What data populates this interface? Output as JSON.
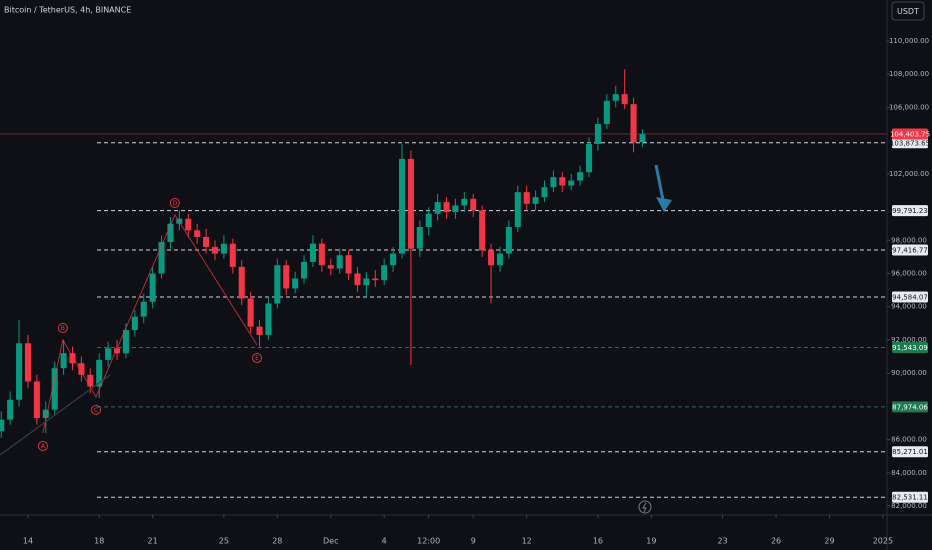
{
  "header": {
    "title": "Bitcoin / TetherUS, 4h, BINANCE",
    "currency_button": "USDT"
  },
  "chart_data": {
    "type": "candlestick",
    "up_color": "#089981",
    "down_color": "#f23645",
    "xlim": [
      -1.57,
      48.23
    ],
    "ylim": [
      81460,
      112470
    ],
    "grid": false,
    "xticks": [
      {
        "value": 0,
        "label": "14"
      },
      {
        "value": 4,
        "label": "18"
      },
      {
        "value": 7,
        "label": "21"
      },
      {
        "value": 11,
        "label": "25"
      },
      {
        "value": 14,
        "label": "28"
      },
      {
        "value": 17,
        "label": "Dec"
      },
      {
        "value": 20,
        "label": "4"
      },
      {
        "value": 22.5,
        "label": "12:00"
      },
      {
        "value": 25,
        "label": "9"
      },
      {
        "value": 28,
        "label": "12"
      },
      {
        "value": 32,
        "label": "16"
      },
      {
        "value": 35,
        "label": "19"
      },
      {
        "value": 39,
        "label": "23"
      },
      {
        "value": 42,
        "label": "26"
      },
      {
        "value": 45,
        "label": "29"
      },
      {
        "value": 48,
        "label": "2025"
      }
    ],
    "yticks": [
      {
        "value": 110000,
        "label": "110,000.00"
      },
      {
        "value": 108000,
        "label": "108,000.00"
      },
      {
        "value": 106000,
        "label": "106,000.00"
      },
      {
        "value": 102000,
        "label": "102,000.00"
      },
      {
        "value": 98000,
        "label": "98,000.00"
      },
      {
        "value": 96000,
        "label": "96,000.00"
      },
      {
        "value": 94000,
        "label": "94,000.00"
      },
      {
        "value": 92000,
        "label": "92,000.00"
      },
      {
        "value": 90000,
        "label": "90,000.00"
      },
      {
        "value": 86000,
        "label": "86,000.00"
      },
      {
        "value": 84000,
        "label": "84,000.00"
      },
      {
        "value": 82000,
        "label": "82,000.00"
      }
    ],
    "x": [
      -1.5,
      -1,
      -0.5,
      0,
      0.5,
      1,
      1.5,
      2,
      2.5,
      3,
      3.5,
      4,
      4.5,
      5,
      5.5,
      6,
      6.5,
      7,
      7.5,
      8,
      8.5,
      9,
      9.5,
      10,
      10.5,
      11,
      11.5,
      12,
      12.5,
      13,
      13.5,
      14,
      14.5,
      15,
      15.5,
      16,
      16.5,
      17,
      17.5,
      18,
      18.5,
      19,
      19.5,
      20,
      20.5,
      21,
      21.5,
      22,
      22.5,
      23,
      23.5,
      24,
      24.5,
      25,
      25.5,
      26,
      26.5,
      27,
      27.5,
      28,
      28.5,
      29,
      29.5,
      30,
      30.5,
      31,
      31.5,
      32,
      32.5,
      33,
      33.5,
      34,
      34.5
    ],
    "ohlc": [
      [
        86500,
        87700,
        86100,
        87200
      ],
      [
        87200,
        88900,
        86900,
        88400
      ],
      [
        88400,
        93200,
        88000,
        91800
      ],
      [
        91800,
        92300,
        89100,
        89500
      ],
      [
        89500,
        89900,
        86900,
        87300
      ],
      [
        87300,
        88300,
        86400,
        87800
      ],
      [
        87800,
        90700,
        87500,
        90300
      ],
      [
        90300,
        92000,
        89900,
        91200
      ],
      [
        91200,
        91600,
        90200,
        90600
      ],
      [
        90600,
        91000,
        89500,
        89900
      ],
      [
        89900,
        90300,
        88800,
        89200
      ],
      [
        89200,
        91200,
        88500,
        90800
      ],
      [
        90800,
        91900,
        90400,
        91500
      ],
      [
        91500,
        92000,
        90800,
        91200
      ],
      [
        91200,
        93000,
        90900,
        92600
      ],
      [
        92600,
        93800,
        92200,
        93400
      ],
      [
        93400,
        94800,
        93000,
        94300
      ],
      [
        94300,
        96400,
        93900,
        96000
      ],
      [
        96000,
        98300,
        95700,
        97900
      ],
      [
        97900,
        99400,
        97500,
        99000
      ],
      [
        99000,
        99800,
        98600,
        99300
      ],
      [
        99300,
        99600,
        98200,
        98600
      ],
      [
        98600,
        99000,
        97800,
        98200
      ],
      [
        98200,
        98700,
        97200,
        97600
      ],
      [
        97600,
        98000,
        96800,
        97200
      ],
      [
        97200,
        98300,
        96900,
        97800
      ],
      [
        97800,
        98100,
        96000,
        96400
      ],
      [
        96400,
        96800,
        94100,
        94500
      ],
      [
        94500,
        94900,
        92400,
        92800
      ],
      [
        92800,
        93200,
        91600,
        92300
      ],
      [
        92300,
        94600,
        92000,
        94200
      ],
      [
        94200,
        96900,
        93900,
        96500
      ],
      [
        96500,
        96800,
        94700,
        95100
      ],
      [
        95100,
        96100,
        94800,
        95700
      ],
      [
        95700,
        97100,
        95400,
        96700
      ],
      [
        96700,
        98300,
        96400,
        97800
      ],
      [
        97800,
        98100,
        96100,
        96500
      ],
      [
        96500,
        96900,
        95900,
        96300
      ],
      [
        96300,
        97500,
        96000,
        97100
      ],
      [
        97100,
        97400,
        95600,
        96000
      ],
      [
        96000,
        96400,
        94900,
        95300
      ],
      [
        95300,
        96100,
        94600,
        95700
      ],
      [
        95700,
        96200,
        95200,
        95600
      ],
      [
        95600,
        96900,
        95300,
        96500
      ],
      [
        96500,
        97600,
        96100,
        97200
      ],
      [
        97200,
        103800,
        96900,
        102900
      ],
      [
        102900,
        103400,
        90500,
        97500
      ],
      [
        97500,
        99200,
        97000,
        98800
      ],
      [
        98800,
        100000,
        98300,
        99600
      ],
      [
        99600,
        100800,
        99200,
        100300
      ],
      [
        100300,
        100600,
        99300,
        99700
      ],
      [
        99700,
        100500,
        99300,
        100100
      ],
      [
        100100,
        100900,
        99700,
        100500
      ],
      [
        100500,
        100800,
        99400,
        99800
      ],
      [
        99800,
        100100,
        97000,
        97400
      ],
      [
        97400,
        97800,
        94200,
        96500
      ],
      [
        96500,
        97600,
        96100,
        97200
      ],
      [
        97200,
        99200,
        96900,
        98800
      ],
      [
        98800,
        101300,
        98500,
        100900
      ],
      [
        100900,
        101300,
        99800,
        100200
      ],
      [
        100200,
        101000,
        99800,
        100600
      ],
      [
        100600,
        101600,
        100300,
        101200
      ],
      [
        101200,
        102200,
        100900,
        101800
      ],
      [
        101800,
        102100,
        100900,
        101300
      ],
      [
        101300,
        102000,
        101000,
        101600
      ],
      [
        101600,
        102500,
        101300,
        102100
      ],
      [
        102100,
        104200,
        101800,
        103800
      ],
      [
        103800,
        105400,
        103400,
        105000
      ],
      [
        105000,
        106800,
        104700,
        106400
      ],
      [
        106400,
        107300,
        106000,
        106800
      ],
      [
        106800,
        108300,
        105900,
        106200
      ],
      [
        106200,
        106600,
        103300,
        103900
      ],
      [
        103900,
        104700,
        103600,
        104400
      ]
    ],
    "last_price": {
      "value": 104403.75,
      "label": "104,403.75",
      "color": "#f23645"
    },
    "levels": [
      {
        "value": 103873.65,
        "label": "103,873.65",
        "color": "#d1d4dc"
      },
      {
        "value": 99791.23,
        "label": "99,791.23",
        "color": "#d1d4dc"
      },
      {
        "value": 97416.77,
        "label": "97,416.77",
        "color": "#d1d4dc"
      },
      {
        "value": 94584.07,
        "label": "94,584.07",
        "color": "#d1d4dc"
      },
      {
        "value": 91543.09,
        "label": "91,543.09",
        "color": "#1e7a4f"
      },
      {
        "value": 87974.06,
        "label": "87,974.06",
        "color": "#1e7a4f"
      },
      {
        "value": 85271.01,
        "label": "85,271.01",
        "color": "#d1d4dc"
      },
      {
        "value": 82531.11,
        "label": "82,531.11",
        "color": "#d1d4dc"
      }
    ],
    "wave": {
      "color": "#f23645",
      "labels": [
        "A",
        "B",
        "C",
        "D",
        "E"
      ],
      "x": [
        0.84,
        1.96,
        3.82,
        8.25,
        12.86
      ],
      "y": [
        86400,
        92000,
        88570,
        99530,
        91700
      ]
    }
  }
}
